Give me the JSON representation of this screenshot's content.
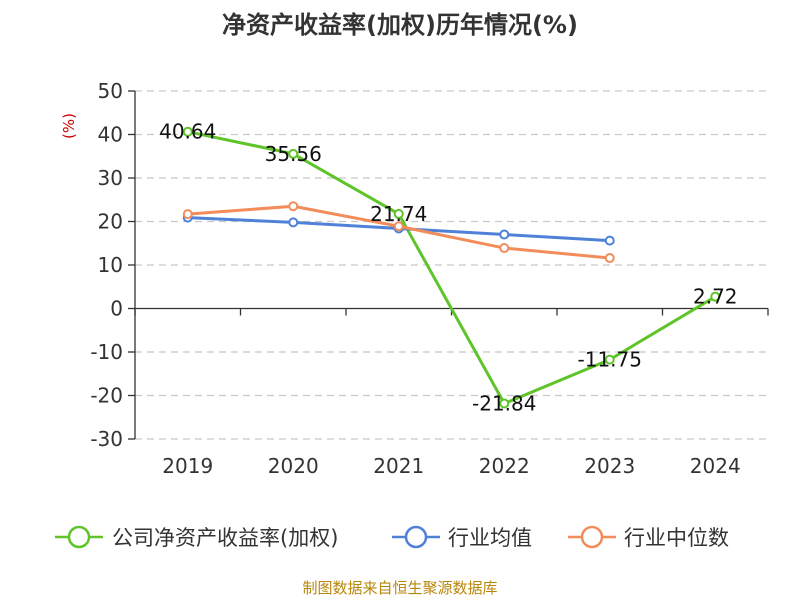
{
  "chart_data": {
    "type": "line",
    "title": "净资产收益率(加权)历年情况(%)",
    "ylabel": "(%)",
    "xlabel": "",
    "categories": [
      "2019",
      "2020",
      "2021",
      "2022",
      "2023",
      "2024"
    ],
    "ylim": [
      -30,
      50
    ],
    "yticks": [
      50,
      40,
      30,
      20,
      10,
      0,
      -10,
      -20,
      -30
    ],
    "grid": true,
    "legend_position": "bottom",
    "series": [
      {
        "name": "公司净资产收益率(加权)",
        "color": "#5ec429",
        "values": [
          40.64,
          35.56,
          21.74,
          -21.84,
          -11.75,
          2.72
        ],
        "labeled": true
      },
      {
        "name": "行业均值",
        "color": "#4f81d8",
        "values": [
          20.9,
          19.8,
          18.4,
          17.0,
          15.6,
          null
        ],
        "labeled": false
      },
      {
        "name": "行业中位数",
        "color": "#f28c5a",
        "values": [
          21.7,
          23.5,
          18.9,
          13.9,
          11.6,
          null
        ],
        "labeled": false
      }
    ],
    "data_labels": [
      "40.64",
      "35.56",
      "21.74",
      "-21.84",
      "-11.75",
      "2.72"
    ]
  },
  "source": "制图数据来自恒生聚源数据库"
}
